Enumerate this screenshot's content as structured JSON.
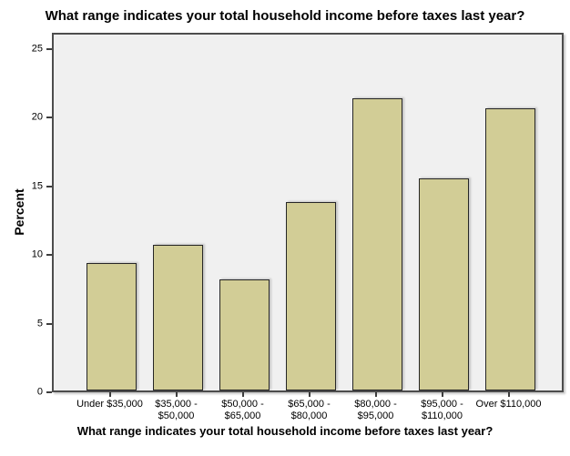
{
  "chart_data": {
    "type": "bar",
    "title": "What range indicates your total household income before taxes last year?",
    "xlabel": "What range indicates your total household income before taxes last year?",
    "ylabel": "Percent",
    "categories": [
      "Under $35,000",
      "$35,000 - $50,000",
      "$50,000 - $65,000",
      "$65,000 - $80,000",
      "$80,000 - $95,000",
      "$95,000 - $110,000",
      "Over $110,000"
    ],
    "category_lines": [
      [
        "Under $35,000"
      ],
      [
        "$35,000 -",
        "$50,000"
      ],
      [
        "$50,000 -",
        "$65,000"
      ],
      [
        "$65,000 -",
        "$80,000"
      ],
      [
        "$80,000 -",
        "$95,000"
      ],
      [
        "$95,000 -",
        "$110,000"
      ],
      [
        "Over $110,000"
      ]
    ],
    "values": [
      9.4,
      10.7,
      8.2,
      13.9,
      21.5,
      15.6,
      20.8
    ],
    "unit": "percent",
    "ylim": [
      0,
      26.2
    ],
    "yticks": [
      0,
      5,
      10,
      15,
      20,
      25
    ],
    "grid": false,
    "legend": "none",
    "colors": {
      "bar_fill": "#D2CD96",
      "bar_border": "#262626",
      "plot_background": "#F0F0F0",
      "frame_border": "#4D4D4D",
      "tick_color": "#3D3D3D",
      "text": "#000000",
      "page_background": "#FFFFFF"
    }
  }
}
